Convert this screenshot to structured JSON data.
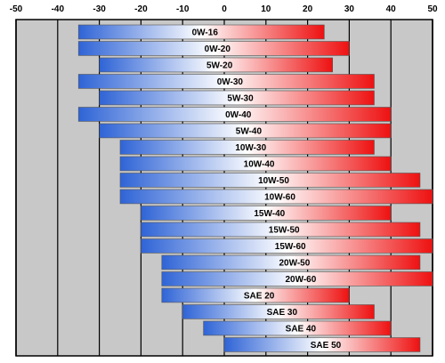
{
  "chart_data": {
    "type": "bar",
    "orientation": "horizontal",
    "xlim": [
      -50,
      50
    ],
    "x_ticks": [
      "-50",
      "-40",
      "-30",
      "-20",
      "-10",
      "0",
      "10",
      "20",
      "30",
      "40",
      "50"
    ],
    "grid": true,
    "colors": {
      "cold": "#2f64d6",
      "mid": "#ffffff",
      "hot": "#ee1111",
      "plot_bg": "#c8c8c8",
      "gridline": "#000000"
    },
    "bars": [
      {
        "label": "0W-16",
        "min": -35,
        "max": 24
      },
      {
        "label": "0W-20",
        "min": -35,
        "max": 30
      },
      {
        "label": "5W-20",
        "min": -30,
        "max": 26
      },
      {
        "label": "0W-30",
        "min": -35,
        "max": 36
      },
      {
        "label": "5W-30",
        "min": -30,
        "max": 36
      },
      {
        "label": "0W-40",
        "min": -35,
        "max": 40
      },
      {
        "label": "5W-40",
        "min": -30,
        "max": 40
      },
      {
        "label": "10W-30",
        "min": -25,
        "max": 36
      },
      {
        "label": "10W-40",
        "min": -25,
        "max": 40
      },
      {
        "label": "10W-50",
        "min": -25,
        "max": 47
      },
      {
        "label": "10W-60",
        "min": -25,
        "max": 50
      },
      {
        "label": "15W-40",
        "min": -20,
        "max": 40
      },
      {
        "label": "15W-50",
        "min": -20,
        "max": 47
      },
      {
        "label": "15W-60",
        "min": -20,
        "max": 50
      },
      {
        "label": "20W-50",
        "min": -15,
        "max": 47
      },
      {
        "label": "20W-60",
        "min": -15,
        "max": 50
      },
      {
        "label": "SAE 20",
        "min": -15,
        "max": 30
      },
      {
        "label": "SAE 30",
        "min": -10,
        "max": 36
      },
      {
        "label": "SAE 40",
        "min": -5,
        "max": 40
      },
      {
        "label": "SAE 50",
        "min": 0,
        "max": 47
      }
    ]
  }
}
